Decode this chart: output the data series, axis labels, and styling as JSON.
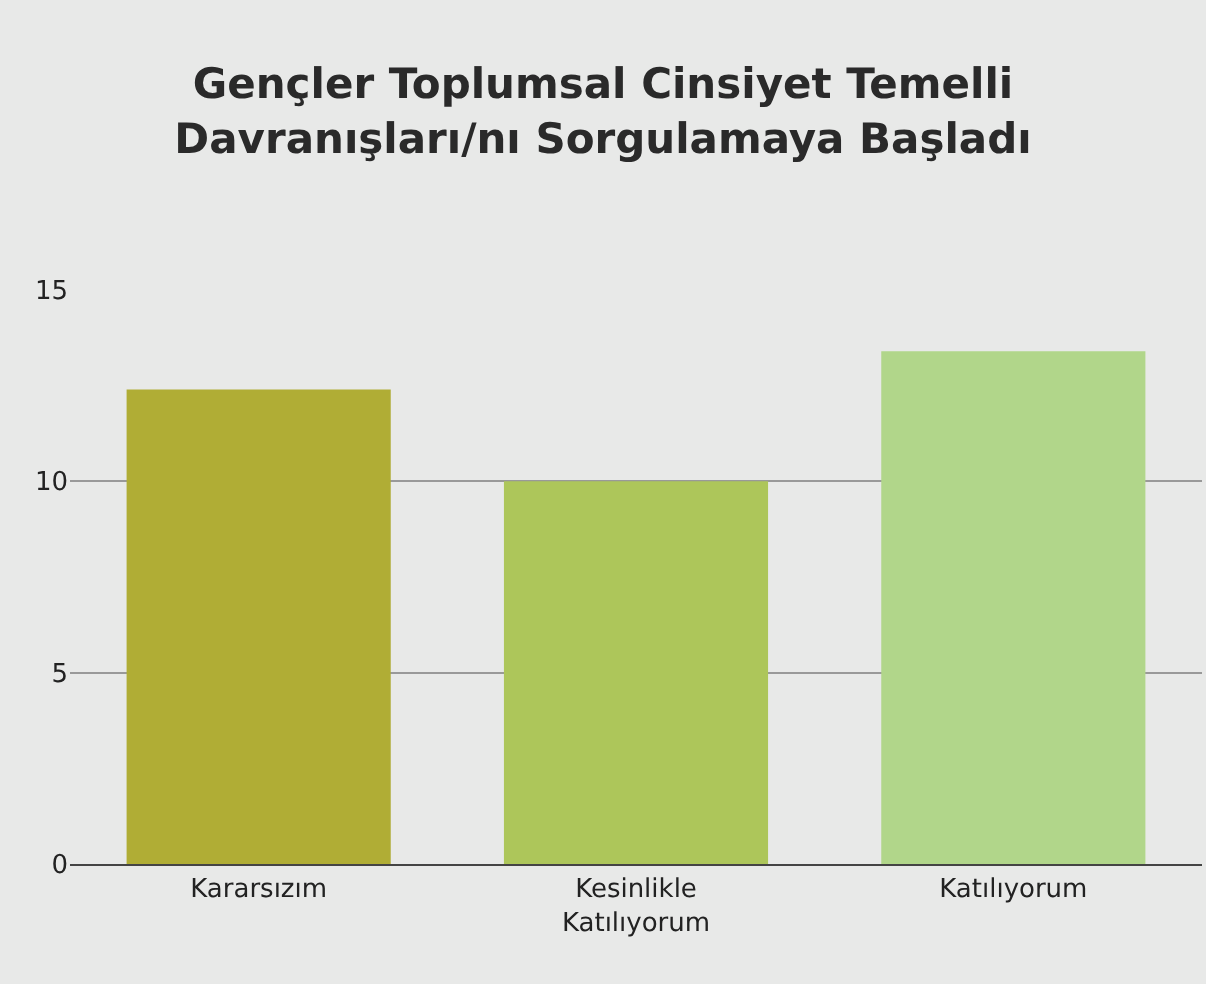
{
  "chart_data": {
    "type": "bar",
    "title": "Gençler Toplumsal Cinsiyet Temelli\nDavranışları/nı Sorgulamaya Başladı",
    "categories": [
      "Kararsızım",
      "Kesinlikle\nKatılıyorum",
      "Katılıyorum"
    ],
    "values": [
      12.4,
      10,
      13.4
    ],
    "colors": [
      "#b0ad35",
      "#adc65a",
      "#b1d68a"
    ],
    "ylim": [
      0,
      15
    ],
    "yticks": [
      0,
      5,
      10,
      15
    ],
    "grid": "y",
    "legend": false
  }
}
